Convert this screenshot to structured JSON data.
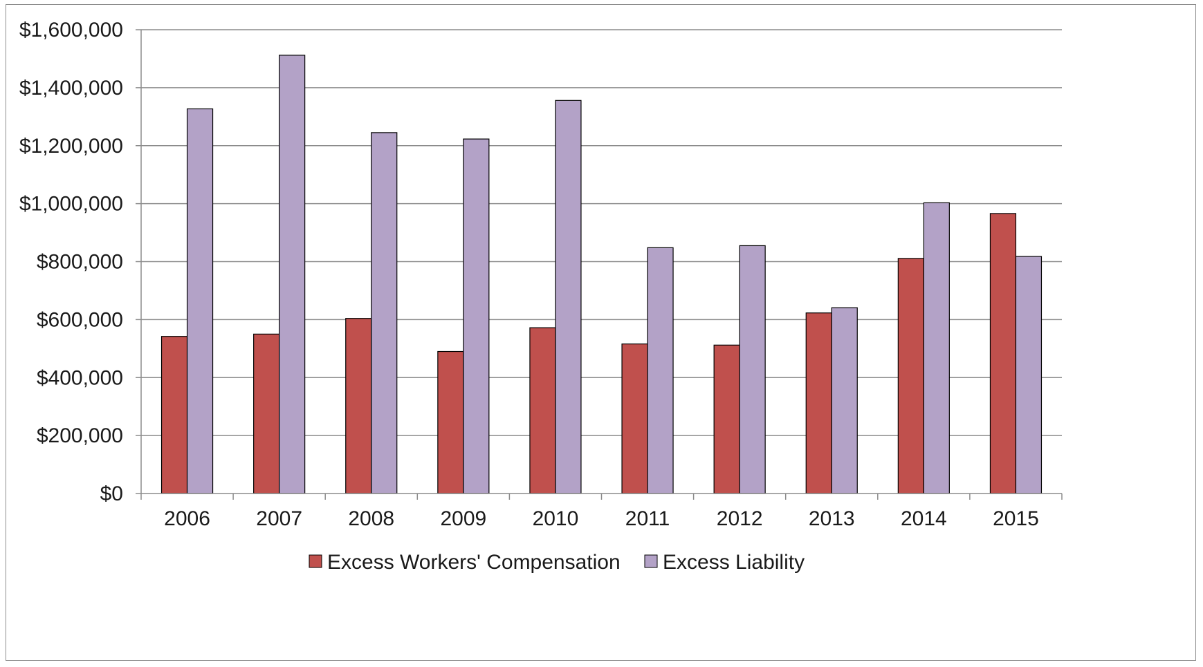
{
  "chart_data": {
    "type": "bar",
    "title": "",
    "xlabel": "",
    "ylabel": "",
    "categories": [
      "2006",
      "2007",
      "2008",
      "2009",
      "2010",
      "2011",
      "2012",
      "2013",
      "2014",
      "2015"
    ],
    "series": [
      {
        "name": "Excess Workers' Compensation",
        "color": "#c0504d",
        "values": [
          542000,
          550000,
          604000,
          490000,
          572000,
          516000,
          512000,
          623000,
          811000,
          966000
        ]
      },
      {
        "name": "Excess Liability",
        "color": "#b3a2c7",
        "values": [
          1327000,
          1512000,
          1245000,
          1223000,
          1356000,
          848000,
          855000,
          641000,
          1003000,
          818000
        ]
      }
    ],
    "ylim": [
      0,
      1600000
    ],
    "yticks": [
      0,
      200000,
      400000,
      600000,
      800000,
      1000000,
      1200000,
      1400000,
      1600000
    ],
    "ytick_labels": [
      "$0",
      "$200,000",
      "$400,000",
      "$600,000",
      "$800,000",
      "$1,000,000",
      "$1,200,000",
      "$1,400,000",
      "$1,600,000"
    ],
    "grid": true,
    "legend_position": "bottom"
  }
}
